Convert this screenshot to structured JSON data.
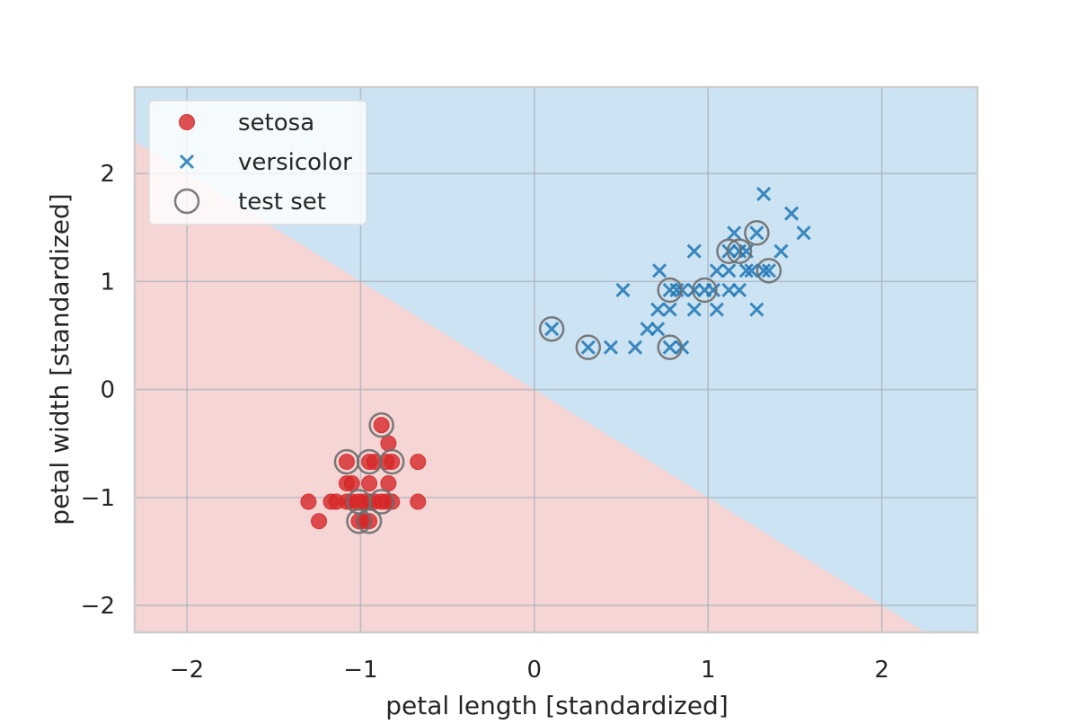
{
  "chart_data": {
    "type": "scatter",
    "xlabel": "petal length [standardized]",
    "ylabel": "petal width [standardized]",
    "xlim": [
      -2.3,
      2.55
    ],
    "ylim": [
      -2.25,
      2.8
    ],
    "xticks": [
      -2,
      -1,
      0,
      1,
      2
    ],
    "yticks": [
      -2,
      -1,
      0,
      1,
      2
    ],
    "xtick_labels": [
      "−2",
      "−1",
      "0",
      "1",
      "2"
    ],
    "ytick_labels": [
      "−2",
      "−1",
      "0",
      "1",
      "2"
    ],
    "grid": true,
    "legend_position": "upper-left",
    "decision_boundary": {
      "equation": "y = -x",
      "region_below": "setosa",
      "region_above": "versicolor"
    },
    "colors": {
      "setosa": "#d62728",
      "versicolor": "#1f77b4",
      "test_ring": "#6e6e6e",
      "region_setosa": "#f6d5d5",
      "region_versicolor": "#cce3f3",
      "grid": "#aab3bc",
      "frame": "#cccccc"
    },
    "series": [
      {
        "name": "setosa",
        "marker": "circle",
        "points": [
          [
            -0.88,
            -0.33
          ],
          [
            -0.84,
            -0.5
          ],
          [
            -1.08,
            -0.67
          ],
          [
            -0.95,
            -0.67
          ],
          [
            -0.92,
            -0.67
          ],
          [
            -0.85,
            -0.67
          ],
          [
            -0.82,
            -0.67
          ],
          [
            -0.67,
            -0.67
          ],
          [
            -1.08,
            -0.87
          ],
          [
            -1.05,
            -0.87
          ],
          [
            -0.95,
            -0.87
          ],
          [
            -0.84,
            -0.87
          ],
          [
            -1.3,
            -1.04
          ],
          [
            -1.17,
            -1.04
          ],
          [
            -1.14,
            -1.04
          ],
          [
            -1.08,
            -1.04
          ],
          [
            -1.05,
            -1.04
          ],
          [
            -1.01,
            -1.04
          ],
          [
            -0.98,
            -1.04
          ],
          [
            -0.95,
            -1.04
          ],
          [
            -0.92,
            -1.04
          ],
          [
            -0.88,
            -1.04
          ],
          [
            -0.85,
            -1.04
          ],
          [
            -0.82,
            -1.04
          ],
          [
            -0.67,
            -1.04
          ],
          [
            -1.24,
            -1.22
          ],
          [
            -1.01,
            -1.22
          ],
          [
            -0.98,
            -1.22
          ],
          [
            -0.95,
            -1.22
          ]
        ]
      },
      {
        "name": "versicolor",
        "marker": "x",
        "points": [
          [
            0.1,
            0.56
          ],
          [
            0.31,
            0.39
          ],
          [
            0.44,
            0.39
          ],
          [
            0.58,
            0.39
          ],
          [
            0.78,
            0.39
          ],
          [
            0.85,
            0.39
          ],
          [
            0.51,
            0.92
          ],
          [
            0.65,
            0.56
          ],
          [
            0.71,
            0.56
          ],
          [
            0.71,
            0.74
          ],
          [
            0.72,
            1.1
          ],
          [
            0.78,
            0.74
          ],
          [
            0.78,
            0.92
          ],
          [
            0.82,
            0.92
          ],
          [
            0.85,
            0.92
          ],
          [
            0.92,
            0.74
          ],
          [
            0.92,
            0.92
          ],
          [
            0.92,
            1.28
          ],
          [
            0.98,
            0.92
          ],
          [
            1.03,
            0.92
          ],
          [
            1.05,
            0.74
          ],
          [
            1.05,
            1.1
          ],
          [
            1.12,
            0.92
          ],
          [
            1.12,
            1.1
          ],
          [
            1.12,
            1.28
          ],
          [
            1.15,
            1.45
          ],
          [
            1.18,
            0.92
          ],
          [
            1.18,
            1.28
          ],
          [
            1.22,
            1.28
          ],
          [
            1.22,
            1.1
          ],
          [
            1.25,
            1.1
          ],
          [
            1.28,
            0.74
          ],
          [
            1.28,
            1.45
          ],
          [
            1.32,
            1.1
          ],
          [
            1.35,
            1.1
          ],
          [
            1.32,
            1.81
          ],
          [
            1.42,
            1.28
          ],
          [
            1.48,
            1.63
          ],
          [
            1.55,
            1.45
          ]
        ]
      },
      {
        "name": "test set",
        "marker": "open-circle",
        "points": [
          [
            -0.88,
            -0.33
          ],
          [
            -1.08,
            -0.67
          ],
          [
            -0.95,
            -0.67
          ],
          [
            -0.82,
            -0.67
          ],
          [
            -1.01,
            -1.04
          ],
          [
            -0.88,
            -1.04
          ],
          [
            -1.01,
            -1.22
          ],
          [
            -0.95,
            -1.22
          ],
          [
            0.1,
            0.56
          ],
          [
            0.31,
            0.39
          ],
          [
            0.78,
            0.39
          ],
          [
            0.78,
            0.92
          ],
          [
            0.98,
            0.92
          ],
          [
            1.12,
            1.28
          ],
          [
            1.18,
            1.28
          ],
          [
            1.28,
            1.45
          ],
          [
            1.35,
            1.1
          ]
        ]
      }
    ]
  }
}
